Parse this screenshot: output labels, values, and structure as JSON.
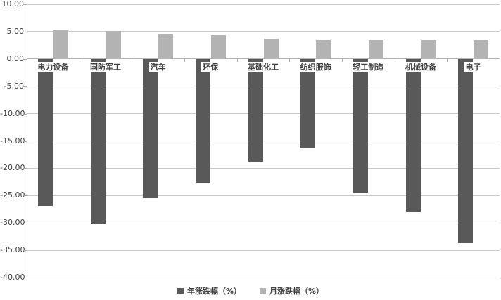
{
  "chart_data": {
    "type": "bar",
    "title": "",
    "categories": [
      "电力设备",
      "国防军工",
      "汽车",
      "环保",
      "基础化工",
      "纺织服饰",
      "轻工制造",
      "机械设备",
      "电子"
    ],
    "series": [
      {
        "name": "年涨跌幅（%）",
        "color": "#595959",
        "values": [
          -26.9,
          -30.2,
          -25.5,
          -22.7,
          -18.8,
          -16.2,
          -24.4,
          -28.1,
          -33.7
        ]
      },
      {
        "name": "月涨跌幅（%）",
        "color": "#b3b3b3",
        "values": [
          5.2,
          5.1,
          4.5,
          4.3,
          3.7,
          3.5,
          3.5,
          3.5,
          3.4
        ]
      }
    ],
    "y_axis": {
      "min": -40,
      "max": 10,
      "tick_step": 5,
      "tick_labels": [
        "10.00",
        "5.00",
        "0.00",
        "-5.00",
        "-10.00",
        "-15.00",
        "-20.00",
        "-25.00",
        "-30.00",
        "-35.00",
        "-40.00"
      ]
    },
    "grid": true,
    "legend_position": "bottom",
    "legend": [
      "年涨跌幅（%）",
      "月涨跌幅（%）"
    ]
  },
  "colors": {
    "background": "#ffffff",
    "gridline": "#c9c9c9",
    "zero_line": "#b3b3b3",
    "axis_line": "#bfbfbf",
    "tick": "#a6a6a6",
    "text": "#404040"
  }
}
